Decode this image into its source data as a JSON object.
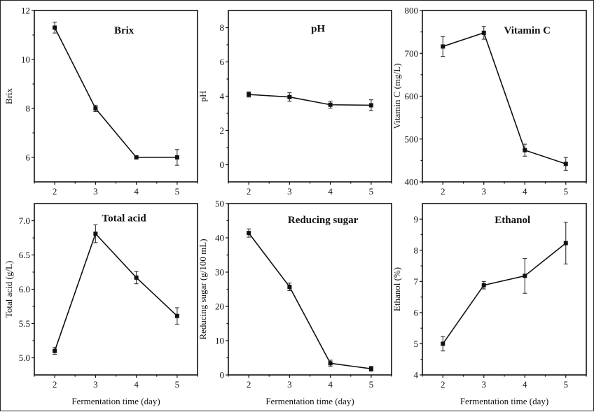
{
  "chart_data": [
    {
      "type": "line",
      "title": "Brix",
      "xlabel": "",
      "ylabel": "Brix",
      "x": [
        2,
        3,
        4,
        5
      ],
      "xticks": [
        "2",
        "3",
        "4",
        "5"
      ],
      "xlim": [
        1.5,
        5.5
      ],
      "ylim": [
        5,
        12
      ],
      "yticks": [
        6,
        8,
        10,
        12
      ],
      "ytick_labels": [
        "6",
        "8",
        "10",
        "12"
      ],
      "series": [
        {
          "name": "Brix",
          "values": [
            11.3,
            8.0,
            6.0,
            6.0
          ],
          "errors": [
            0.22,
            0.13,
            0.03,
            0.32
          ]
        }
      ]
    },
    {
      "type": "line",
      "title": "pH",
      "xlabel": "",
      "ylabel": "pH",
      "x": [
        2,
        3,
        4,
        5
      ],
      "xticks": [
        "2",
        "3",
        "4",
        "5"
      ],
      "xlim": [
        1.5,
        5.5
      ],
      "ylim": [
        -1,
        9
      ],
      "yticks": [
        0,
        2,
        4,
        6,
        8
      ],
      "ytick_labels": [
        "0",
        "2",
        "4",
        "6",
        "8"
      ],
      "series": [
        {
          "name": "pH",
          "values": [
            4.1,
            3.95,
            3.5,
            3.47
          ],
          "errors": [
            0.15,
            0.25,
            0.2,
            0.32
          ]
        }
      ]
    },
    {
      "type": "line",
      "title": "Vitamin C",
      "xlabel": "",
      "ylabel": "Vitamin C (mg/L)",
      "x": [
        2,
        3,
        4,
        5
      ],
      "xticks": [
        "2",
        "3",
        "4",
        "5"
      ],
      "xlim": [
        1.5,
        5.5
      ],
      "ylim": [
        400,
        800
      ],
      "yticks": [
        400,
        500,
        600,
        700,
        800
      ],
      "ytick_labels": [
        "400",
        "500",
        "600",
        "700",
        "800"
      ],
      "series": [
        {
          "name": "Vitamin C",
          "values": [
            716,
            748,
            474,
            442
          ],
          "errors": [
            23,
            15,
            14,
            15
          ]
        }
      ]
    },
    {
      "type": "line",
      "title": "Total acid",
      "xlabel": "Fermentation time (day)",
      "ylabel": "Total acid (g/L)",
      "x": [
        2,
        3,
        4,
        5
      ],
      "xticks": [
        "2",
        "3",
        "4",
        "5"
      ],
      "xlim": [
        1.5,
        5.5
      ],
      "ylim": [
        4.75,
        7.25
      ],
      "yticks": [
        5.0,
        5.5,
        6.0,
        6.5,
        7.0
      ],
      "ytick_labels": [
        "5.0",
        "5.5",
        "6.0",
        "6.5",
        "7.0"
      ],
      "series": [
        {
          "name": "Total acid",
          "values": [
            5.1,
            6.81,
            6.17,
            5.61
          ],
          "errors": [
            0.05,
            0.13,
            0.09,
            0.12
          ]
        }
      ]
    },
    {
      "type": "line",
      "title": "Reducing sugar",
      "xlabel": "Fermentation time (day)",
      "ylabel": "Reducing sugar (g/100 mL)",
      "x": [
        2,
        3,
        4,
        5
      ],
      "xticks": [
        "2",
        "3",
        "4",
        "5"
      ],
      "xlim": [
        1.5,
        5.5
      ],
      "ylim": [
        0,
        50
      ],
      "yticks": [
        0,
        10,
        20,
        30,
        40,
        50
      ],
      "ytick_labels": [
        "0",
        "10",
        "20",
        "30",
        "40",
        "50"
      ],
      "series": [
        {
          "name": "Reducing sugar",
          "values": [
            41.4,
            25.7,
            3.4,
            1.8
          ],
          "errors": [
            1.2,
            1.1,
            0.9,
            0.7
          ]
        }
      ]
    },
    {
      "type": "line",
      "title": "Ethanol",
      "xlabel": "Fermentation time (day)",
      "ylabel": "Ethanol (%)",
      "x": [
        2,
        3,
        4,
        5
      ],
      "xticks": [
        "2",
        "3",
        "4",
        "5"
      ],
      "xlim": [
        1.5,
        5.5
      ],
      "ylim": [
        4,
        9.5
      ],
      "yticks": [
        4,
        5,
        6,
        7,
        8,
        9
      ],
      "ytick_labels": [
        "4",
        "5",
        "6",
        "7",
        "8",
        "9"
      ],
      "series": [
        {
          "name": "Ethanol",
          "values": [
            5.0,
            6.88,
            7.18,
            8.23
          ],
          "errors": [
            0.23,
            0.12,
            0.56,
            0.67
          ]
        }
      ]
    }
  ]
}
